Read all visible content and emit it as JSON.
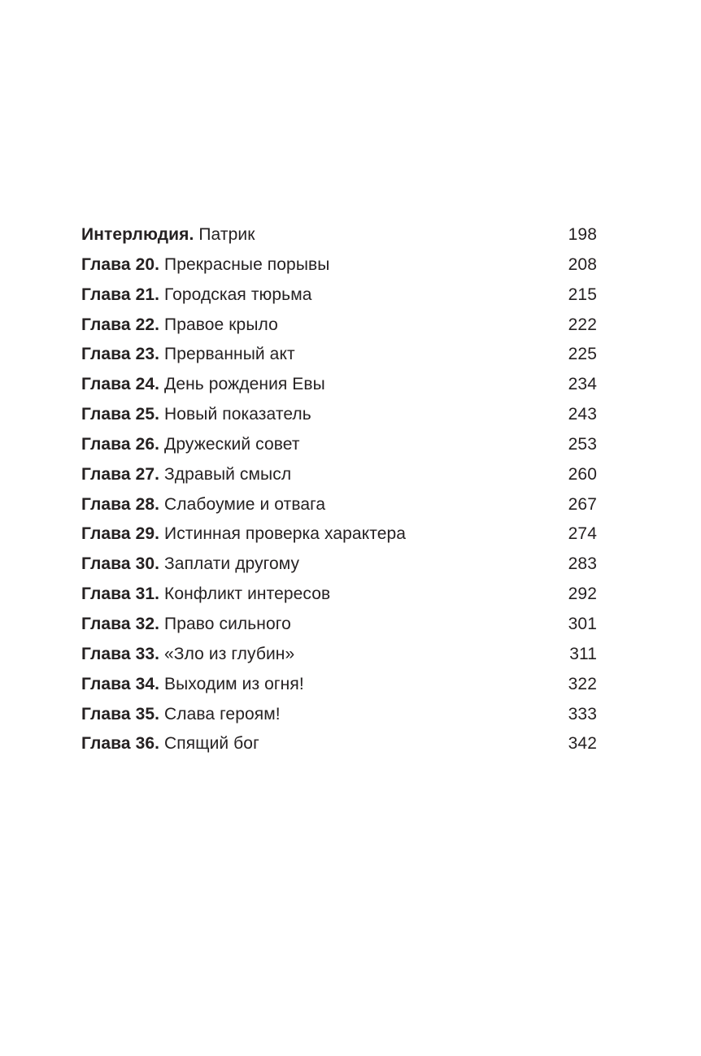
{
  "colors": {
    "background": "#ffffff",
    "text": "#252122"
  },
  "toc": {
    "entries": [
      {
        "label": "Интерлюдия.",
        "title": "Патрик",
        "page": "198"
      },
      {
        "label": "Глава 20.",
        "title": "Прекрасные порывы",
        "page": "208"
      },
      {
        "label": "Глава 21.",
        "title": "Городская тюрьма",
        "page": "215"
      },
      {
        "label": "Глава 22.",
        "title": "Правое крыло",
        "page": "222"
      },
      {
        "label": "Глава 23.",
        "title": "Прерванный акт",
        "page": "225"
      },
      {
        "label": "Глава 24.",
        "title": "День рождения Евы",
        "page": "234"
      },
      {
        "label": "Глава 25.",
        "title": "Новый показатель",
        "page": "243"
      },
      {
        "label": "Глава 26.",
        "title": "Дружеский совет",
        "page": "253"
      },
      {
        "label": "Глава 27.",
        "title": "Здравый смысл",
        "page": "260"
      },
      {
        "label": "Глава 28.",
        "title": "Слабоумие и отвага",
        "page": "267"
      },
      {
        "label": "Глава 29.",
        "title": "Истинная проверка характера",
        "page": "274"
      },
      {
        "label": "Глава 30.",
        "title": "Заплати другому",
        "page": "283"
      },
      {
        "label": "Глава 31.",
        "title": "Конфликт интересов",
        "page": "292"
      },
      {
        "label": "Глава 32.",
        "title": "Право сильного",
        "page": "301"
      },
      {
        "label": "Глава 33.",
        "title": "«Зло из глубин»",
        "page": "311"
      },
      {
        "label": "Глава 34.",
        "title": "Выходим из огня!",
        "page": "322"
      },
      {
        "label": "Глава 35.",
        "title": "Слава героям!",
        "page": "333"
      },
      {
        "label": "Глава 36.",
        "title": "Спящий бог",
        "page": "342"
      }
    ]
  }
}
